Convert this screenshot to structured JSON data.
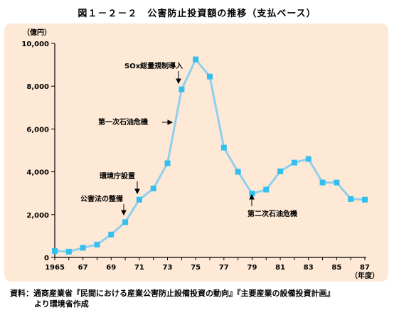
{
  "title": "図１－２－２　公害防止投資額の推移（支払ベース）",
  "source_line1": "資料：通商産業省『民間における産業公害防止設備投資の動向』『主要産業の設備投資計画』",
  "source_line2": "より環境省作成",
  "colors": {
    "panel": "#fde9d6",
    "line": "#8fd0ee",
    "marker": "#33bfef",
    "axis": "#000000"
  },
  "chart_data": {
    "type": "line",
    "title": "図１－２－２　公害防止投資額の推移（支払ベース）",
    "ylabel": "（億円）",
    "xlabel": "（年度）",
    "ylim": [
      0,
      10000
    ],
    "yticks": [
      0,
      2000,
      4000,
      6000,
      8000,
      10000
    ],
    "ytick_labels": [
      "0",
      "2,000",
      "4,000",
      "6,000",
      "8,000",
      "10,000"
    ],
    "xlim": [
      1965,
      1987
    ],
    "xticks": [
      1965,
      1967,
      1969,
      1971,
      1973,
      1975,
      1977,
      1979,
      1981,
      1983,
      1985,
      1987
    ],
    "xtick_labels": [
      "1965",
      "67",
      "69",
      "71",
      "73",
      "75",
      "77",
      "79",
      "81",
      "83",
      "85",
      "87"
    ],
    "grid": false,
    "series": [
      {
        "x": [
          1965,
          1966,
          1967,
          1968,
          1969,
          1970,
          1971,
          1972,
          1973,
          1974,
          1975,
          1976,
          1977,
          1978,
          1979,
          1980,
          1981,
          1982,
          1983,
          1984,
          1985,
          1986,
          1987
        ],
        "values": [
          300,
          270,
          450,
          600,
          1070,
          1650,
          2700,
          3220,
          4400,
          7850,
          9250,
          8450,
          5130,
          4000,
          2980,
          3170,
          4020,
          4430,
          4600,
          3500,
          3500,
          2730,
          2700
        ]
      }
    ],
    "annotations": [
      {
        "text": "公害法の整備",
        "x": 1970,
        "arrow": "down"
      },
      {
        "text": "環境庁設置",
        "x": 1971,
        "arrow": "down"
      },
      {
        "text": "第一次石油危機",
        "x": 1974,
        "arrow": "right"
      },
      {
        "text": "SOx総量規制導入",
        "x": 1974,
        "arrow": "down"
      },
      {
        "text": "第二次石油危機",
        "x": 1979,
        "arrow": "up"
      }
    ]
  }
}
